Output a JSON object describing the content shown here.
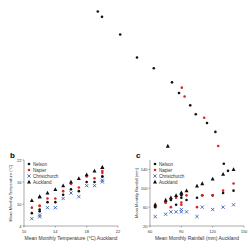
{
  "chart_data": [
    {
      "type": "scatter",
      "tick_labels": false,
      "xlim": [
        0,
        100
      ],
      "ylim": [
        0,
        100
      ],
      "series": [
        {
          "color": "#111111",
          "marker": "circle",
          "x": [
            2,
            5,
            18,
            30,
            42,
            55,
            60,
            68,
            72,
            80,
            86,
            92,
            95
          ],
          "values": [
            98,
            95,
            85,
            72,
            66,
            58,
            52,
            45,
            40,
            35,
            30,
            12,
            8
          ]
        },
        {
          "color": "#d62728",
          "marker": "circle",
          "x": [
            62,
            64,
            78,
            88
          ],
          "values": [
            55,
            50,
            38,
            22
          ]
        },
        {
          "color": "#111111",
          "marker": "triangle",
          "x": [
            52
          ],
          "values": [
            22
          ]
        }
      ]
    },
    {
      "type": "scatter",
      "title": "b",
      "x_label": "Mean Monthly Temperature (°C) Auckland",
      "y_label": "Mean Monthly Temperature (°C)",
      "xlim": [
        10,
        22
      ],
      "ylim": [
        4,
        22
      ],
      "xticks": [
        10,
        14,
        18,
        22
      ],
      "yticks": [
        4,
        10,
        16,
        22
      ],
      "legend": "upper left",
      "series": [
        {
          "name": "Nelson",
          "color": "#111111",
          "marker": "circle",
          "x": [
            20,
            20,
            19,
            17,
            14,
            12,
            11,
            12,
            13,
            15,
            16,
            18
          ],
          "values": [
            17.5,
            17.5,
            16,
            13.5,
            10.5,
            8,
            7.5,
            8.5,
            10.5,
            12.5,
            14,
            16
          ]
        },
        {
          "name": "Napier",
          "color": "#d62728",
          "marker": "circle",
          "x": [
            20,
            20,
            19,
            17,
            14,
            12,
            11,
            12,
            13,
            15,
            16,
            18
          ],
          "values": [
            19,
            18.5,
            17,
            14.5,
            11.5,
            9.5,
            9,
            9.5,
            11.5,
            13.5,
            15.5,
            17.5
          ]
        },
        {
          "name": "Christchurch",
          "color": "#1f4fb4",
          "marker": "cross",
          "x": [
            20,
            20,
            19,
            17,
            14,
            12,
            11,
            12,
            13,
            15,
            16,
            18
          ],
          "values": [
            16.5,
            16,
            15,
            12,
            9,
            6.5,
            6,
            7,
            9,
            11.5,
            13,
            15
          ]
        },
        {
          "name": "Auckland",
          "color": "#111111",
          "marker": "triangle",
          "x": [
            20,
            20,
            19,
            17,
            14,
            12,
            11,
            12,
            13,
            15,
            16,
            18
          ],
          "values": [
            20,
            20,
            19,
            17,
            14,
            12,
            11,
            12,
            13,
            15,
            16,
            18
          ]
        }
      ]
    },
    {
      "type": "scatter",
      "title": "c",
      "x_label": "Mean Monthly Rainfall (mm) Auckland",
      "y_label": "Mean Monthly Rainfall (mm)",
      "xlim": [
        60,
        150
      ],
      "ylim": [
        20,
        160
      ],
      "xticks": [
        60,
        90,
        120,
        150
      ],
      "yticks": [
        20,
        60,
        100,
        140
      ],
      "legend": "upper left",
      "series": [
        {
          "name": "Nelson",
          "color": "#111111",
          "marker": "circle",
          "x": [
            75,
            65,
            85,
            95,
            110,
            130,
            140,
            120,
            105,
            90,
            80,
            90
          ],
          "values": [
            70,
            60,
            65,
            75,
            85,
            90,
            95,
            85,
            80,
            85,
            75,
            80
          ]
        },
        {
          "name": "Napier",
          "color": "#d62728",
          "marker": "circle",
          "x": [
            75,
            65,
            85,
            95,
            110,
            130,
            140,
            120,
            105,
            90,
            80,
            90
          ],
          "values": [
            70,
            65,
            80,
            85,
            85,
            95,
            110,
            85,
            60,
            65,
            60,
            70
          ]
        },
        {
          "name": "Christchurch",
          "color": "#1f4fb4",
          "marker": "cross",
          "x": [
            75,
            65,
            85,
            95,
            110,
            130,
            140,
            120,
            105,
            90,
            80,
            90
          ],
          "values": [
            45,
            40,
            50,
            50,
            60,
            60,
            65,
            55,
            40,
            50,
            50,
            55
          ]
        },
        {
          "name": "Auckland",
          "color": "#111111",
          "marker": "triangle",
          "x": [
            75,
            65,
            85,
            95,
            110,
            130,
            140,
            120,
            105,
            90,
            80,
            90
          ],
          "values": [
            75,
            65,
            85,
            95,
            110,
            130,
            140,
            120,
            105,
            90,
            80,
            90
          ]
        }
      ]
    }
  ]
}
